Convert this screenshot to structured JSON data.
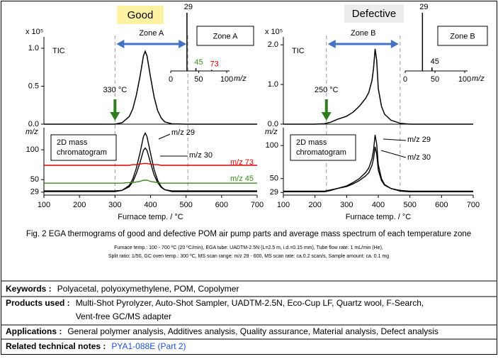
{
  "figure": {
    "panels": [
      {
        "badge": "Good",
        "zone_label": "Zone A",
        "zone_range": [
          300,
          505
        ],
        "onset_label": "330 °C",
        "x_label": "Furnace temp. / °C",
        "xlim": [
          100,
          700
        ],
        "xticks": [
          100,
          200,
          300,
          400,
          500,
          600,
          700
        ],
        "x": [
          100,
          250,
          300,
          320,
          340,
          350,
          360,
          370,
          380,
          385,
          390,
          400,
          410,
          420,
          430,
          440,
          460,
          500,
          600,
          700
        ],
        "tic": {
          "scale_label": "x 10⁵",
          "name": "TIC",
          "ylim": [
            0,
            1.15
          ],
          "yticks": [
            {
              "value": 0,
              "label": "0.0"
            },
            {
              "value": 0.5,
              "label": "0.5"
            },
            {
              "value": 1,
              "label": "1.0"
            }
          ],
          "values": [
            0,
            0,
            0,
            0.02,
            0.1,
            0.2,
            0.38,
            0.62,
            0.9,
            0.96,
            0.9,
            0.62,
            0.36,
            0.18,
            0.08,
            0.03,
            0.005,
            0,
            0,
            0
          ]
        },
        "mass": {
          "axis_label": "m/z",
          "legend": [
            "2D mass",
            "chromatogram"
          ],
          "ylim": [
            24,
            137
          ],
          "yticks": [
            29,
            50,
            100
          ],
          "series": [
            {
              "name": "m/z 29",
              "color": "#000000",
              "values": [
                30,
                30,
                30,
                32,
                40,
                51,
                69,
                94,
                122,
                128,
                122,
                94,
                67,
                49,
                38,
                33,
                30,
                30,
                30,
                30
              ]
            },
            {
              "name": "m/z 30",
              "color": "#000000",
              "values": [
                31,
                31,
                31,
                32,
                38,
                46,
                60,
                78,
                99,
                103,
                99,
                78,
                58,
                45,
                37,
                33,
                31,
                31,
                31,
                31
              ]
            },
            {
              "name": "m/z 73",
              "color": "#e00000",
              "values": [
                74,
                74,
                74,
                74,
                74,
                75,
                75,
                76,
                77,
                77,
                77,
                76,
                75,
                75,
                74,
                74,
                74,
                74,
                74,
                74
              ]
            },
            {
              "name": "m/z 45",
              "color": "#3a8a1e",
              "values": [
                44,
                44,
                44,
                44,
                45,
                45,
                46,
                47,
                49,
                49,
                49,
                47,
                46,
                45,
                44,
                44,
                44,
                44,
                44,
                44
              ]
            }
          ]
        },
        "spectrum": {
          "title": "Zone  A",
          "x_label": "m/z",
          "xlim": [
            0,
            100
          ],
          "ylim": [
            0,
            100
          ],
          "xticks": [
            0,
            50,
            100
          ],
          "peaks": [
            {
              "mz": 29,
              "intensity": 100,
              "color": "#000000"
            },
            {
              "mz": 45,
              "intensity": 5,
              "color": "#3a8a1e"
            },
            {
              "mz": 73,
              "intensity": 2,
              "color": "#e00000"
            }
          ]
        }
      },
      {
        "badge": "Defective",
        "zone_label": "Zone B",
        "zone_range": [
          236,
          469
        ],
        "onset_label": "250 °C",
        "x_label": "Furnace temp. / °C",
        "xlim": [
          100,
          700
        ],
        "xticks": [
          100,
          200,
          300,
          400,
          500,
          600,
          700
        ],
        "x": [
          100,
          200,
          230,
          250,
          270,
          300,
          320,
          340,
          360,
          370,
          380,
          385,
          390,
          395,
          400,
          410,
          420,
          440,
          470,
          500,
          600,
          700
        ],
        "tic": {
          "scale_label": "x 10⁵",
          "name": "TIC",
          "ylim": [
            0,
            2.2
          ],
          "yticks": [
            {
              "value": 0,
              "label": "0.0"
            },
            {
              "value": 1,
              "label": "1.0"
            },
            {
              "value": 2,
              "label": "2.0"
            }
          ],
          "values": [
            0,
            0,
            0.01,
            0.05,
            0.12,
            0.2,
            0.3,
            0.45,
            0.65,
            0.8,
            1.1,
            1.4,
            1.9,
            1.6,
            0.9,
            0.45,
            0.25,
            0.1,
            0.02,
            0,
            0,
            0
          ]
        },
        "mass": {
          "axis_label": "m/z",
          "legend": [
            "2D mass",
            "chromatogram"
          ],
          "ylim": [
            25,
            127
          ],
          "yticks": [
            29,
            50,
            100
          ],
          "series": [
            {
              "name": "m/z 29",
              "color": "#000000",
              "values": [
                30,
                30,
                30,
                32,
                35,
                39,
                44,
                50,
                59,
                66,
                80,
                93,
                116,
                102,
                71,
                50,
                41,
                35,
                31,
                30,
                30,
                30
              ]
            },
            {
              "name": "m/z 30",
              "color": "#000000",
              "values": [
                31,
                31,
                31,
                33,
                35,
                38,
                42,
                47,
                54,
                59,
                70,
                80,
                98,
                87,
                63,
                47,
                40,
                35,
                32,
                31,
                31,
                31
              ]
            }
          ]
        },
        "spectrum": {
          "title": "Zone B",
          "x_label": "m/z",
          "xlim": [
            0,
            100
          ],
          "ylim": [
            0,
            100
          ],
          "xticks": [
            0,
            50,
            100
          ],
          "peaks": [
            {
              "mz": 29,
              "intensity": 100,
              "color": "#000000"
            },
            {
              "mz": 45,
              "intensity": 6,
              "color": "#000000"
            }
          ]
        }
      }
    ],
    "caption": "Fig. 2 EGA thermograms of good and defective POM air pump parts and average mass spectrum of each temperature zone",
    "conditions": [
      "Furnace temp.: 100 - 700 ºC (20 ºC/min), EGA tube: UADTM-2.5N (L=2.5 m, i.d.=0.15 mm), Tube flow rate: 1 mL/min (He),",
      "Split ratio: 1/50, GC oven temp.: 300 ºC, MS scan range:  m/z 29 - 600, MS scan rate: ca.0.2 scan/s, Sample amount: ca. 0.1 mg"
    ]
  },
  "info": {
    "rows": [
      {
        "label": "Keywords :",
        "lines": [
          "Polyacetal, polyoxymethylene, POM, Copolymer"
        ]
      },
      {
        "label": "Products used :",
        "lines": [
          "Multi-Shot Pyrolyzer, Auto-Shot Sampler, UADTM-2.5N, Eco-Cup LF, Quartz wool, F-Search,",
          "Vent-free GC/MS adapter"
        ]
      },
      {
        "label": "Applications :",
        "lines": [
          "General polymer analysis, Additives analysis, Quality assurance, Material analysis, Defect analysis"
        ]
      },
      {
        "label": "Related  technical notes :",
        "lines": [
          "PYA1-088E (Part 2)"
        ]
      }
    ]
  }
}
